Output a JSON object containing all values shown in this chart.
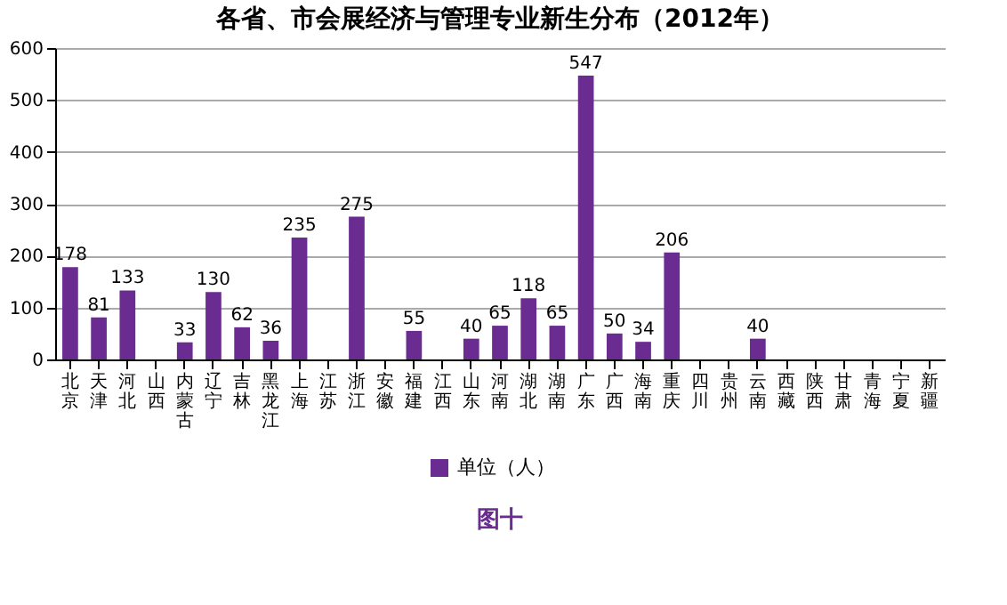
{
  "chart_data": {
    "type": "bar",
    "title": "各省、市会展经济与管理专业新生分布（2012年）",
    "categories": [
      "北京",
      "天津",
      "河北",
      "山西",
      "内蒙古",
      "辽宁",
      "吉林",
      "黑龙江",
      "上海",
      "江苏",
      "浙江",
      "安徽",
      "福建",
      "江西",
      "山东",
      "河南",
      "湖北",
      "湖南",
      "广东",
      "广西",
      "海南",
      "重庆",
      "四川",
      "贵州",
      "云南",
      "西藏",
      "陕西",
      "甘肃",
      "青海",
      "宁夏",
      "新疆"
    ],
    "series": [
      {
        "name": "单位（人）",
        "color": "#6a2c91",
        "values": [
          178,
          81,
          133,
          null,
          33,
          130,
          62,
          36,
          235,
          null,
          275,
          null,
          55,
          null,
          40,
          65,
          118,
          65,
          547,
          50,
          34,
          206,
          null,
          null,
          40,
          null,
          null,
          null,
          null,
          null,
          null
        ]
      }
    ],
    "data_labels": true,
    "ylim": [
      0,
      600
    ],
    "yticks": [
      0,
      100,
      200,
      300,
      400,
      500,
      600
    ],
    "grid": "y",
    "legend": "bottom",
    "annotations": [
      "图十"
    ]
  }
}
